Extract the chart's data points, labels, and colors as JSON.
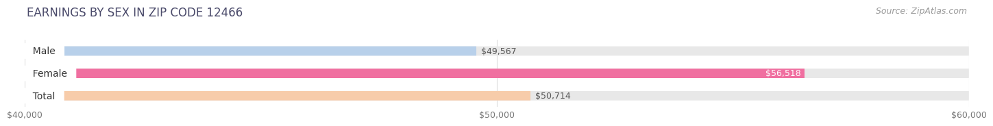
{
  "title": "EARNINGS BY SEX IN ZIP CODE 12466",
  "source_text": "Source: ZipAtlas.com",
  "categories": [
    "Male",
    "Female",
    "Total"
  ],
  "values": [
    49567,
    56518,
    50714
  ],
  "bar_colors": [
    "#b8d0ea",
    "#f06fa0",
    "#f7ccaa"
  ],
  "bar_bg_color": "#e8e8e8",
  "xlim": [
    40000,
    60000
  ],
  "xticks": [
    40000,
    50000,
    60000
  ],
  "xtick_labels": [
    "$40,000",
    "$50,000",
    "$60,000"
  ],
  "value_labels": [
    "$49,567",
    "$56,518",
    "$50,714"
  ],
  "value_inside": [
    false,
    true,
    false
  ],
  "title_fontsize": 12,
  "source_fontsize": 9,
  "bar_label_fontsize": 10,
  "value_fontsize": 9,
  "tick_fontsize": 9,
  "background_color": "#ffffff",
  "title_color": "#4a4a6a",
  "source_color": "#999999"
}
